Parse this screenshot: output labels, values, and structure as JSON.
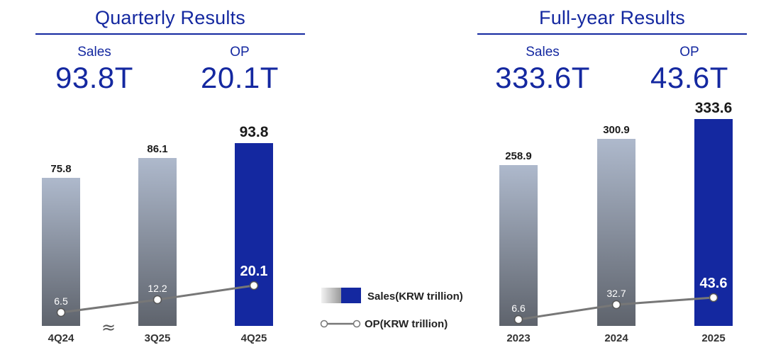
{
  "colors": {
    "brand": "#1428A0",
    "gray_bar_top": "#AEB9CC",
    "gray_bar_bottom": "#5E636C",
    "op_line": "#777777",
    "text_dark": "#1a1a1a"
  },
  "quarterly": {
    "title": "Quarterly Results",
    "sales_label": "Sales",
    "sales_value": "93.8T",
    "op_label": "OP",
    "op_value": "20.1T"
  },
  "fullyear": {
    "title": "Full-year Results",
    "sales_label": "Sales",
    "sales_value": "333.6T",
    "op_label": "OP",
    "op_value": "43.6T"
  },
  "legend": {
    "sales": "Sales(KRW trillion)",
    "op": "OP(KRW trillion)"
  },
  "break_symbol": "≈",
  "chart_data": [
    {
      "type": "bar",
      "title": "Quarterly Results",
      "categories": [
        "4Q24",
        "3Q25",
        "4Q25"
      ],
      "series": [
        {
          "name": "Sales(KRW trillion)",
          "type": "bar",
          "values": [
            75.8,
            86.1,
            93.8
          ],
          "labels": [
            "75.8",
            "86.1",
            "93.8"
          ]
        },
        {
          "name": "OP(KRW trillion)",
          "type": "line",
          "values": [
            6.5,
            12.2,
            20.1
          ],
          "labels": [
            "6.5",
            "12.2",
            "20.1"
          ]
        }
      ],
      "highlight_index": 2,
      "axis_break": "between 4Q24 and 3Q25"
    },
    {
      "type": "bar",
      "title": "Full-year Results",
      "categories": [
        "2023",
        "2024",
        "2025"
      ],
      "series": [
        {
          "name": "Sales(KRW trillion)",
          "type": "bar",
          "values": [
            258.9,
            300.9,
            333.6
          ],
          "labels": [
            "258.9",
            "300.9",
            "333.6"
          ]
        },
        {
          "name": "OP(KRW trillion)",
          "type": "line",
          "values": [
            6.6,
            32.7,
            43.6
          ],
          "labels": [
            "6.6",
            "32.7",
            "43.6"
          ]
        }
      ],
      "highlight_index": 2
    }
  ]
}
